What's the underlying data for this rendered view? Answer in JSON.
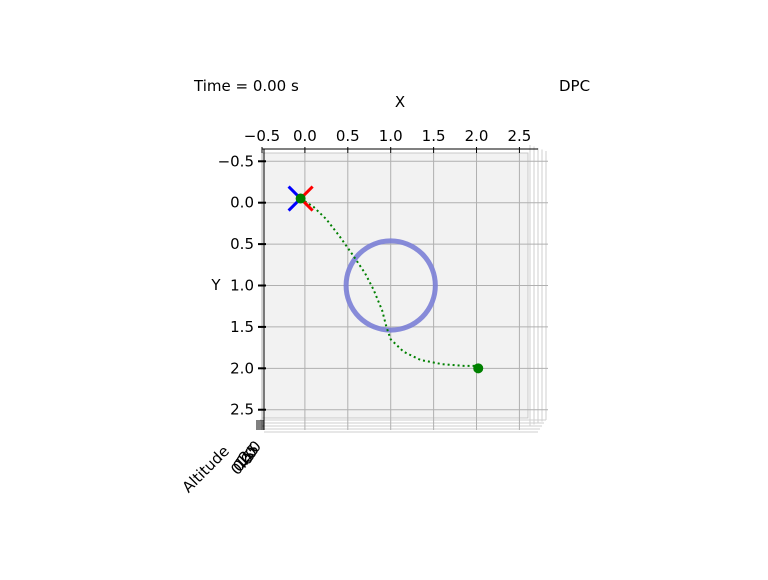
{
  "header": {
    "time_label": "Time = 0.00 s",
    "controller_label": "DPC"
  },
  "chart_data": {
    "type": "line",
    "view": "3d-top-down",
    "xlabel": "X",
    "ylabel": "Y",
    "zlabel": "Altitude",
    "xlim": [
      -0.5,
      2.6
    ],
    "ylim": [
      -0.6,
      2.6
    ],
    "x_ticks": [
      -0.5,
      0.0,
      0.5,
      1.0,
      1.5,
      2.0,
      2.5
    ],
    "x_tick_labels": [
      "−0.5",
      "0.0",
      "0.5",
      "1.0",
      "1.5",
      "2.0",
      "2.5"
    ],
    "y_ticks": [
      -0.5,
      0.0,
      0.5,
      1.0,
      1.5,
      2.0,
      2.5
    ],
    "y_tick_labels": [
      "−0.5",
      "0.0",
      "0.5",
      "1.0",
      "1.5",
      "2.0",
      "2.5"
    ],
    "z_tick_labels": [
      "2.0",
      "1.5",
      "1.0",
      "0.5",
      "0.0"
    ],
    "grid": true,
    "colors": {
      "trajectory": "#008000",
      "obstacle": "#7b7fd6",
      "arm_blue": "#0000ff",
      "arm_red": "#ff0000",
      "pane": "#f2f2f2",
      "grid": "#b0b0b0"
    },
    "series": [
      {
        "type": "trajectory",
        "style": "dotted",
        "x": [
          -0.05,
          0.1,
          0.25,
          0.4,
          0.55,
          0.7,
          0.8,
          0.9,
          0.95,
          1.0,
          1.15,
          1.35,
          1.6,
          1.85,
          2.0
        ],
        "y": [
          -0.05,
          0.05,
          0.2,
          0.4,
          0.62,
          0.85,
          1.05,
          1.3,
          1.5,
          1.65,
          1.8,
          1.9,
          1.95,
          1.97,
          1.97
        ]
      }
    ],
    "markers": [
      {
        "type": "start",
        "x": -0.05,
        "y": -0.05
      },
      {
        "type": "goal",
        "x": 2.02,
        "y": 2.0
      }
    ],
    "obstacle": {
      "type": "circle",
      "center": [
        1.0,
        1.0
      ],
      "radius": 0.52
    },
    "vehicle": {
      "type": "quadrotor",
      "x": -0.05,
      "y": -0.05,
      "arm_length": 0.2
    }
  }
}
